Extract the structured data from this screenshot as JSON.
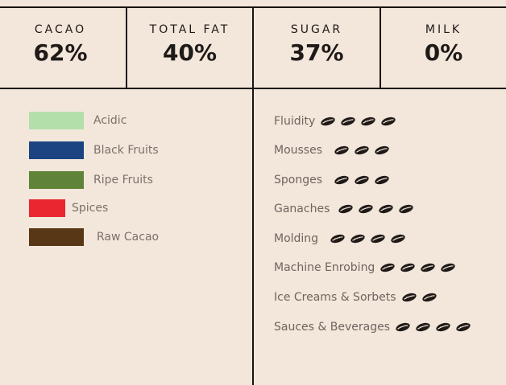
{
  "stats": [
    {
      "label": "CACAO",
      "value": "62%"
    },
    {
      "label": "TOTAL FAT",
      "value": "40%"
    },
    {
      "label": "SUGAR",
      "value": "37%"
    },
    {
      "label": "MILK",
      "value": "0%"
    }
  ],
  "flavor_legend": [
    {
      "label": "Acidic",
      "color": "#b3dfaa"
    },
    {
      "label": "Black Fruits",
      "color": "#1c4483"
    },
    {
      "label": "Ripe Fruits",
      "color": "#5f8437"
    },
    {
      "label": "Spices",
      "color": "#ea2630"
    },
    {
      "label": "Raw Cacao",
      "color": "#573716"
    }
  ],
  "usage_icon": "cacao-bean-icon",
  "usages": [
    {
      "label": "Fluidity",
      "rating": 4
    },
    {
      "label": "Mousses",
      "rating": 3
    },
    {
      "label": "Sponges",
      "rating": 3
    },
    {
      "label": "Ganaches",
      "rating": 4
    },
    {
      "label": "Molding",
      "rating": 4
    },
    {
      "label": "Machine Enrobing",
      "rating": 4
    },
    {
      "label": "Ice Creams & Sorbets",
      "rating": 2
    },
    {
      "label": "Sauces & Beverages",
      "rating": 4
    }
  ]
}
